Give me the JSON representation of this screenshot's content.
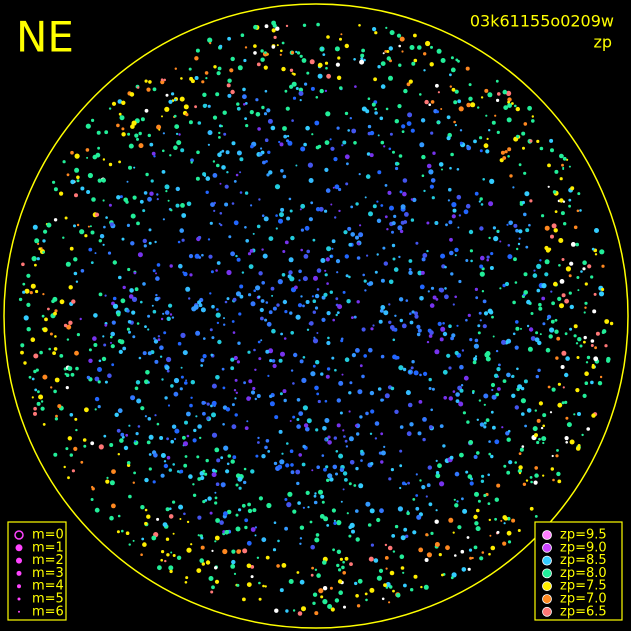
{
  "header": {
    "direction": "NE",
    "frame_id": "03k61155o0209w",
    "quantity": "zp"
  },
  "magnitude_legend": [
    "m=0",
    "m=1",
    "m=2",
    "m=3",
    "m=4",
    "m=5",
    "m=6"
  ],
  "zp_legend": [
    {
      "label": "zp=9.5",
      "color": "#ff80ff"
    },
    {
      "label": "zp=9.0",
      "color": "#cc44ff"
    },
    {
      "label": "zp=8.5",
      "color": "#33ccff"
    },
    {
      "label": "zp=8.0",
      "color": "#22ee99"
    },
    {
      "label": "zp=7.5",
      "color": "#ffee00"
    },
    {
      "label": "zp=7.0",
      "color": "#ff8820"
    },
    {
      "label": "zp=6.5",
      "color": "#ff7777"
    }
  ]
}
